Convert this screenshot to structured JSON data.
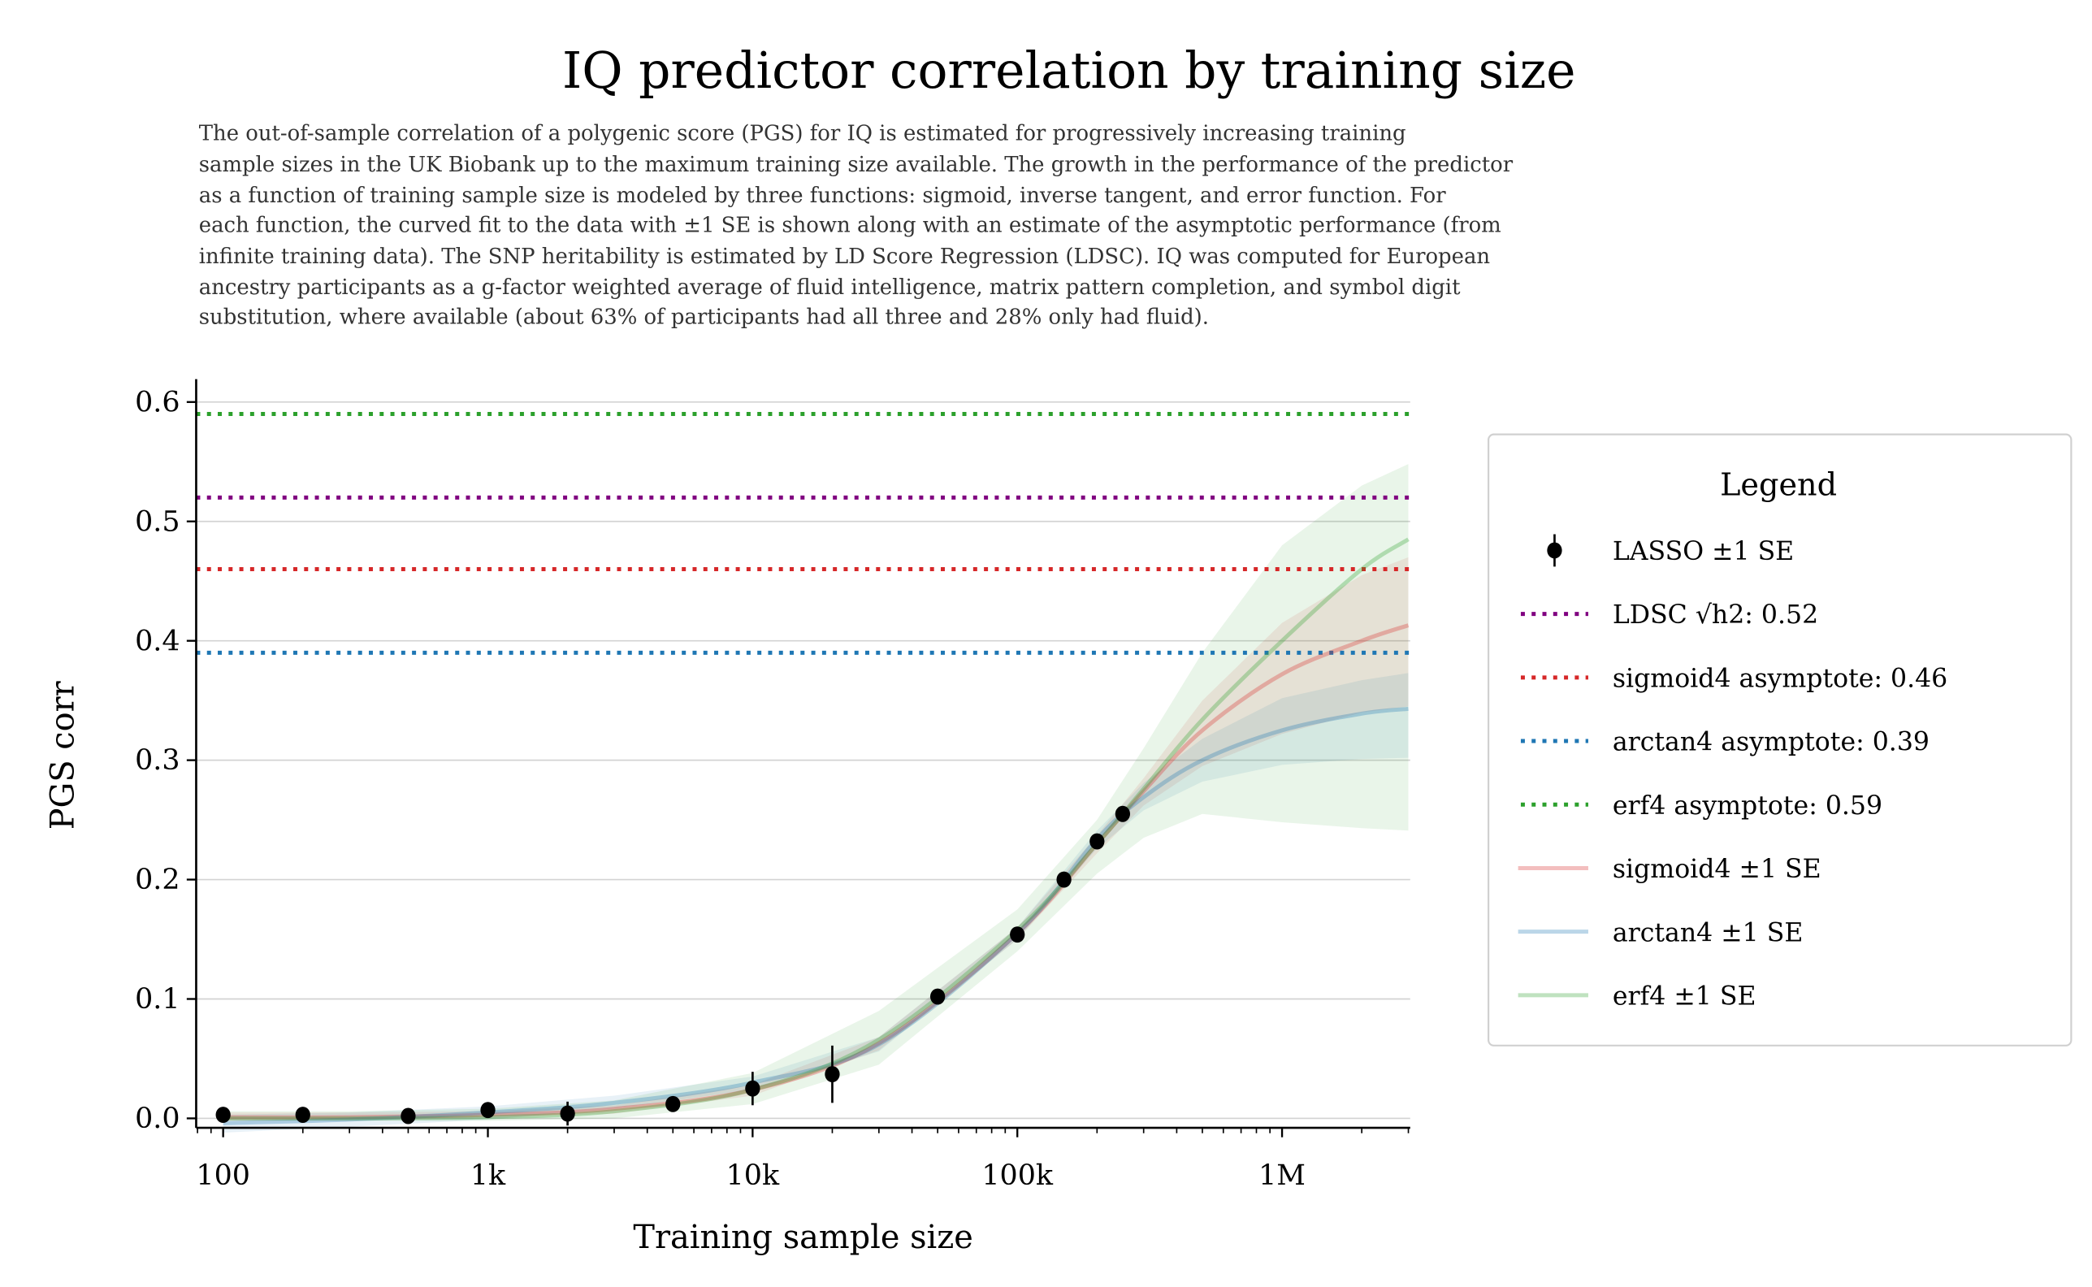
{
  "chart_data": {
    "type": "line",
    "title": "IQ predictor correlation by training size",
    "subtitle_lines": [
      "The out-of-sample correlation of a polygenic score (PGS) for IQ is estimated for progressively increasing training",
      "sample sizes in the UK Biobank up to the maximum training size available. The growth in the performance of the predictor",
      "as a function of training sample size is modeled by three functions: sigmoid, inverse tangent, and error function. For",
      "each function, the curved fit to the data with ±1 SE is shown along with an estimate of the asymptotic performance (from",
      "infinite training data). The SNP heritability is estimated by LD Score Regression (LDSC). IQ was computed for European",
      "ancestry participants as a g-factor weighted average of fluid intelligence, matrix pattern completion, and symbol digit",
      "substitution, where available (about 63% of participants had all three and 28% only had fluid)."
    ],
    "xlabel": "Training sample size",
    "ylabel": "PGS corr",
    "xscale": "log",
    "xlim": [
      80,
      3000000
    ],
    "ylim": [
      -0.01,
      0.62
    ],
    "x_ticks": [
      {
        "value": 100,
        "label": "100"
      },
      {
        "value": 1000,
        "label": "1k"
      },
      {
        "value": 10000,
        "label": "10k"
      },
      {
        "value": 100000,
        "label": "100k"
      },
      {
        "value": 1000000,
        "label": "1M"
      }
    ],
    "y_ticks": [
      {
        "value": 0,
        "label": "0.0"
      },
      {
        "value": 0.1,
        "label": "0.1"
      },
      {
        "value": 0.2,
        "label": "0.2"
      },
      {
        "value": 0.3,
        "label": "0.3"
      },
      {
        "value": 0.4,
        "label": "0.4"
      },
      {
        "value": 0.5,
        "label": "0.5"
      },
      {
        "value": 0.6,
        "label": "0.6"
      }
    ],
    "grid": "horizontal",
    "legend": {
      "title": "Legend",
      "placement": "right",
      "entries": [
        {
          "label": "LASSO ±1 SE",
          "style": "errorbar",
          "color": "#000000"
        },
        {
          "label": "LDSC √h2: 0.52",
          "style": "dotted",
          "color": "#800080"
        },
        {
          "label": "sigmoid4 asymptote: 0.46",
          "style": "dotted",
          "color": "#d62728"
        },
        {
          "label": "arctan4 asymptote: 0.39",
          "style": "dotted",
          "color": "#1f77b4"
        },
        {
          "label": "erf4 asymptote: 0.59",
          "style": "dotted",
          "color": "#2ca02c"
        },
        {
          "label": "sigmoid4 ±1 SE",
          "style": "line",
          "color": "#d62728"
        },
        {
          "label": "arctan4 ±1 SE",
          "style": "line",
          "color": "#1f77b4"
        },
        {
          "label": "erf4 ±1 SE",
          "style": "line",
          "color": "#2ca02c"
        }
      ]
    },
    "lasso": {
      "x": [
        100,
        200,
        500,
        1000,
        2000,
        5000,
        10000,
        20000,
        50000,
        100000,
        150000,
        200000,
        250000
      ],
      "y": [
        0.003,
        0.003,
        0.002,
        0.007,
        0.004,
        0.012,
        0.025,
        0.037,
        0.102,
        0.154,
        0.2,
        0.232,
        0.255
      ],
      "se": [
        0.006,
        0.004,
        0.005,
        0.004,
        0.01,
        0.005,
        0.014,
        0.024,
        0.006,
        0.006,
        0.005,
        0.006,
        0.006
      ]
    },
    "hlines": [
      {
        "name": "LDSC √h2",
        "y": 0.52,
        "color": "#800080"
      },
      {
        "name": "sigmoid4 asymptote",
        "y": 0.46,
        "color": "#d62728"
      },
      {
        "name": "arctan4 asymptote",
        "y": 0.39,
        "color": "#1f77b4"
      },
      {
        "name": "erf4 asymptote",
        "y": 0.59,
        "color": "#2ca02c"
      }
    ],
    "fit_x": [
      100,
      300,
      1000,
      3000,
      10000,
      30000,
      100000,
      200000,
      300000,
      500000,
      1000000,
      2000000,
      3000000
    ],
    "fits": [
      {
        "name": "sigmoid4",
        "color": "#d62728",
        "y": [
          0.001,
          0.001,
          0.003,
          0.008,
          0.024,
          0.063,
          0.155,
          0.23,
          0.274,
          0.325,
          0.372,
          0.4,
          0.413
        ],
        "lower": [
          -0.002,
          -0.002,
          0.0,
          0.004,
          0.019,
          0.057,
          0.15,
          0.222,
          0.262,
          0.295,
          0.322,
          0.34,
          0.345
        ],
        "upper": [
          0.005,
          0.005,
          0.006,
          0.011,
          0.028,
          0.068,
          0.16,
          0.237,
          0.285,
          0.35,
          0.415,
          0.455,
          0.47
        ]
      },
      {
        "name": "arctan4",
        "color": "#1f77b4",
        "y": [
          -0.004,
          -0.001,
          0.005,
          0.013,
          0.03,
          0.062,
          0.155,
          0.234,
          0.269,
          0.3,
          0.325,
          0.339,
          0.343
        ],
        "lower": [
          -0.012,
          -0.007,
          -0.001,
          0.008,
          0.024,
          0.056,
          0.15,
          0.226,
          0.258,
          0.282,
          0.296,
          0.301,
          0.302
        ],
        "upper": [
          0.003,
          0.005,
          0.01,
          0.019,
          0.035,
          0.068,
          0.16,
          0.241,
          0.281,
          0.318,
          0.352,
          0.367,
          0.373
        ]
      },
      {
        "name": "erf4",
        "color": "#2ca02c",
        "y": [
          0.0,
          0.0,
          0.001,
          0.006,
          0.024,
          0.066,
          0.158,
          0.23,
          0.276,
          0.334,
          0.4,
          0.46,
          0.485
        ],
        "lower": [
          -0.002,
          -0.002,
          -0.002,
          0.0,
          0.012,
          0.045,
          0.14,
          0.205,
          0.235,
          0.255,
          0.248,
          0.243,
          0.241
        ],
        "upper": [
          0.006,
          0.006,
          0.008,
          0.015,
          0.038,
          0.09,
          0.175,
          0.25,
          0.31,
          0.39,
          0.48,
          0.53,
          0.548
        ]
      }
    ]
  }
}
